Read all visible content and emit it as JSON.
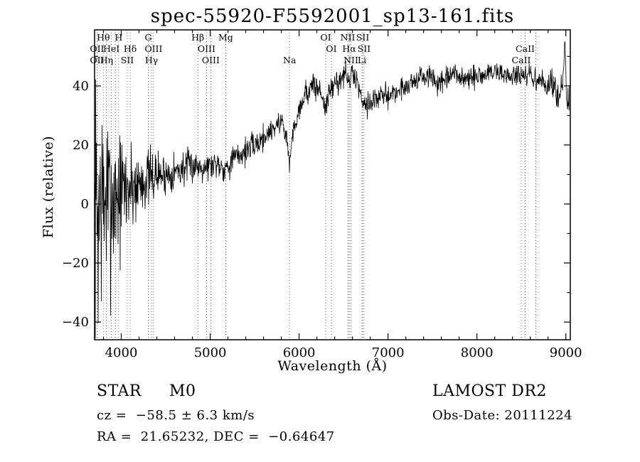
{
  "title": "spec-55920-F5592001_sp13-161.fits",
  "axes": {
    "x_label": "Wavelength (Å)",
    "y_label": "Flux (relative)",
    "x_ticks": [
      4000,
      5000,
      6000,
      7000,
      8000,
      9000
    ],
    "x_tick_labels": [
      "4000",
      "5000",
      "6000",
      "7000",
      "8000",
      "9000"
    ],
    "y_ticks": [
      -40,
      -20,
      0,
      20,
      40
    ],
    "y_tick_labels": [
      "−40",
      "−20",
      "0",
      "20",
      "40"
    ]
  },
  "annotations": {
    "object_type": "STAR",
    "subclass": "M0",
    "survey": "LAMOST DR2",
    "cz": "cz =  −58.5 ± 6.3 km/s",
    "obs_date": "Obs-Date: 20111224",
    "ra_dec": "RA =  21.65232, DEC =  −0.64647"
  },
  "chart_data": {
    "type": "line",
    "title": "spec-55920-F5592001_sp13-161.fits",
    "xlabel": "Wavelength (Å)",
    "ylabel": "Flux (relative)",
    "xlim": [
      3700,
      9050
    ],
    "ylim": [
      -46,
      59
    ],
    "grid": false,
    "legend": "none",
    "sample_step": 4,
    "noise_seed": 7,
    "series": [
      {
        "name": "spectrum",
        "note": "envelope triplets: [wavelength_angstrom, flux_mean, noise_sigma]",
        "envelope": [
          [
            3700,
            -10,
            24
          ],
          [
            3720,
            -2,
            24
          ],
          [
            3745,
            -4,
            22
          ],
          [
            3770,
            3,
            20
          ],
          [
            3800,
            -2,
            19
          ],
          [
            3830,
            4,
            17
          ],
          [
            3860,
            -2,
            16
          ],
          [
            3890,
            3,
            15
          ],
          [
            3920,
            1,
            13
          ],
          [
            3950,
            5,
            12
          ],
          [
            3980,
            2,
            11
          ],
          [
            4010,
            5,
            10
          ],
          [
            4050,
            5,
            9
          ],
          [
            4100,
            6,
            8
          ],
          [
            4150,
            6,
            7
          ],
          [
            4200,
            7,
            6
          ],
          [
            4250,
            8,
            5.5
          ],
          [
            4300,
            9,
            5
          ],
          [
            4350,
            9,
            4.5
          ],
          [
            4400,
            10,
            4
          ],
          [
            4500,
            10,
            3.5
          ],
          [
            4600,
            11,
            3.2
          ],
          [
            4700,
            12,
            3
          ],
          [
            4800,
            13,
            2.8
          ],
          [
            4900,
            13,
            2.6
          ],
          [
            5000,
            13,
            2.4
          ],
          [
            5080,
            14,
            2.4
          ],
          [
            5170,
            12,
            2.4
          ],
          [
            5250,
            15,
            2.4
          ],
          [
            5350,
            17,
            2.4
          ],
          [
            5450,
            19,
            2.2
          ],
          [
            5550,
            21,
            2.2
          ],
          [
            5650,
            24,
            2.2
          ],
          [
            5750,
            27,
            2
          ],
          [
            5820,
            28,
            2
          ],
          [
            5870,
            20,
            2
          ],
          [
            5893,
            13,
            2
          ],
          [
            5920,
            22,
            2
          ],
          [
            5960,
            28,
            2
          ],
          [
            6010,
            33,
            2
          ],
          [
            6060,
            37,
            2.2
          ],
          [
            6120,
            39,
            2.4
          ],
          [
            6180,
            40,
            2.4
          ],
          [
            6240,
            38,
            2.4
          ],
          [
            6300,
            33,
            2.4
          ],
          [
            6360,
            39,
            2.2
          ],
          [
            6420,
            41,
            2.2
          ],
          [
            6480,
            43,
            2
          ],
          [
            6530,
            44,
            2
          ],
          [
            6563,
            41,
            2
          ],
          [
            6600,
            44,
            2
          ],
          [
            6650,
            42,
            2
          ],
          [
            6700,
            36,
            2
          ],
          [
            6760,
            34,
            2
          ],
          [
            6820,
            35,
            2
          ],
          [
            6900,
            36,
            2
          ],
          [
            7000,
            37,
            2
          ],
          [
            7100,
            38,
            2
          ],
          [
            7200,
            40,
            2
          ],
          [
            7300,
            42,
            2
          ],
          [
            7400,
            43,
            2
          ],
          [
            7500,
            43,
            2
          ],
          [
            7580,
            40,
            2
          ],
          [
            7660,
            42,
            2
          ],
          [
            7740,
            44,
            2
          ],
          [
            7820,
            43,
            2
          ],
          [
            7900,
            42,
            2
          ],
          [
            8000,
            43,
            2
          ],
          [
            8100,
            44,
            2
          ],
          [
            8200,
            45,
            2
          ],
          [
            8300,
            44,
            2
          ],
          [
            8400,
            43,
            2
          ],
          [
            8470,
            44,
            2
          ],
          [
            8520,
            42,
            2
          ],
          [
            8580,
            44,
            2
          ],
          [
            8640,
            42,
            2
          ],
          [
            8700,
            42,
            2
          ],
          [
            8780,
            40,
            2.2
          ],
          [
            8860,
            40,
            2.4
          ],
          [
            8930,
            38,
            2.6
          ],
          [
            8970,
            40,
            3
          ],
          [
            8990,
            56,
            1
          ],
          [
            9010,
            34,
            3
          ],
          [
            9050,
            36,
            3
          ]
        ]
      }
    ],
    "line_markers": [
      {
        "label": "Hθ",
        "wavelength": 3798,
        "row": 0
      },
      {
        "label": "H",
        "wavelength": 3970,
        "row": 0
      },
      {
        "label": "G",
        "wavelength": 4304,
        "row": 0
      },
      {
        "label": "Hβ",
        "wavelength": 4861,
        "row": 0
      },
      {
        "label": "Mg",
        "wavelength": 5175,
        "row": 0
      },
      {
        "label": "OI",
        "wavelength": 6300,
        "row": 0
      },
      {
        "label": "NII",
        "wavelength": 6548,
        "row": 0
      },
      {
        "label": "SII",
        "wavelength": 6716,
        "row": 0
      },
      {
        "label": "",
        "wavelength": 3933,
        "row": 0
      },
      {
        "label": "",
        "wavelength": 8662,
        "row": 0
      },
      {
        "label": "OII",
        "wavelength": 3727,
        "row": 1
      },
      {
        "label": "HeI",
        "wavelength": 3889,
        "row": 1
      },
      {
        "label": "Hδ",
        "wavelength": 4101,
        "row": 1
      },
      {
        "label": "OIII",
        "wavelength": 4363,
        "row": 1
      },
      {
        "label": "OIII",
        "wavelength": 4959,
        "row": 1
      },
      {
        "label": "OI",
        "wavelength": 6363,
        "row": 1
      },
      {
        "label": "Hα",
        "wavelength": 6563,
        "row": 1
      },
      {
        "label": "SII",
        "wavelength": 6731,
        "row": 1
      },
      {
        "label": "CaII",
        "wavelength": 8542,
        "row": 1
      },
      {
        "label": "OII",
        "wavelength": 3727,
        "row": 2
      },
      {
        "label": "Hη",
        "wavelength": 3835,
        "row": 2
      },
      {
        "label": "SII",
        "wavelength": 4068,
        "row": 2
      },
      {
        "label": "Hγ",
        "wavelength": 4340,
        "row": 2
      },
      {
        "label": "OIII",
        "wavelength": 5007,
        "row": 2
      },
      {
        "label": "Na",
        "wavelength": 5893,
        "row": 2
      },
      {
        "label": "NII",
        "wavelength": 6583,
        "row": 2
      },
      {
        "label": "Li",
        "wavelength": 6707,
        "row": 2
      },
      {
        "label": "CaII",
        "wavelength": 8498,
        "row": 2
      }
    ]
  }
}
